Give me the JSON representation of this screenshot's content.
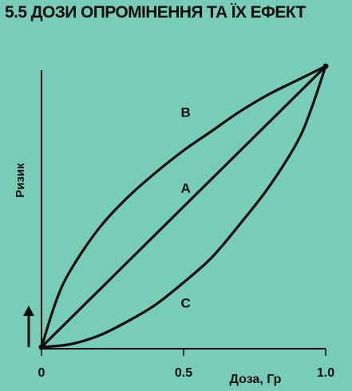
{
  "page": {
    "title": "5.5 ДОЗИ ОПРОМІНЕННЯ ТА ЇХ ЕФЕКТ"
  },
  "colors": {
    "background": "#78cdb8",
    "ink": "#0c0c0c"
  },
  "chart_data": {
    "type": "line",
    "title": "5.5 ДОЗИ ОПРОМІНЕННЯ ТА ЇХ ЕФЕКТ",
    "xlabel": "Доза, Гр",
    "ylabel": "Ризик",
    "xlim": [
      0,
      1.0
    ],
    "ylim": [
      0,
      1.0
    ],
    "x_ticks": [
      {
        "value": 0,
        "label": "0"
      },
      {
        "value": 0.5,
        "label": "0.5"
      },
      {
        "value": 1.0,
        "label": "1.0"
      }
    ],
    "grid": false,
    "series": [
      {
        "name": "A",
        "x": [
          0,
          0.25,
          0.5,
          0.75,
          1.0
        ],
        "y": [
          0,
          0.25,
          0.5,
          0.75,
          1.0
        ]
      },
      {
        "name": "B",
        "x": [
          0,
          0.05,
          0.1,
          0.2,
          0.3,
          0.4,
          0.5,
          0.6,
          0.7,
          0.8,
          0.9,
          1.0
        ],
        "y": [
          0,
          0.16,
          0.27,
          0.42,
          0.53,
          0.62,
          0.7,
          0.77,
          0.84,
          0.9,
          0.95,
          1.0
        ]
      },
      {
        "name": "C",
        "x": [
          0,
          0.1,
          0.2,
          0.3,
          0.4,
          0.5,
          0.6,
          0.7,
          0.8,
          0.9,
          0.95,
          1.0
        ],
        "y": [
          0,
          0.01,
          0.04,
          0.09,
          0.15,
          0.23,
          0.32,
          0.44,
          0.57,
          0.73,
          0.85,
          1.0
        ]
      }
    ]
  }
}
